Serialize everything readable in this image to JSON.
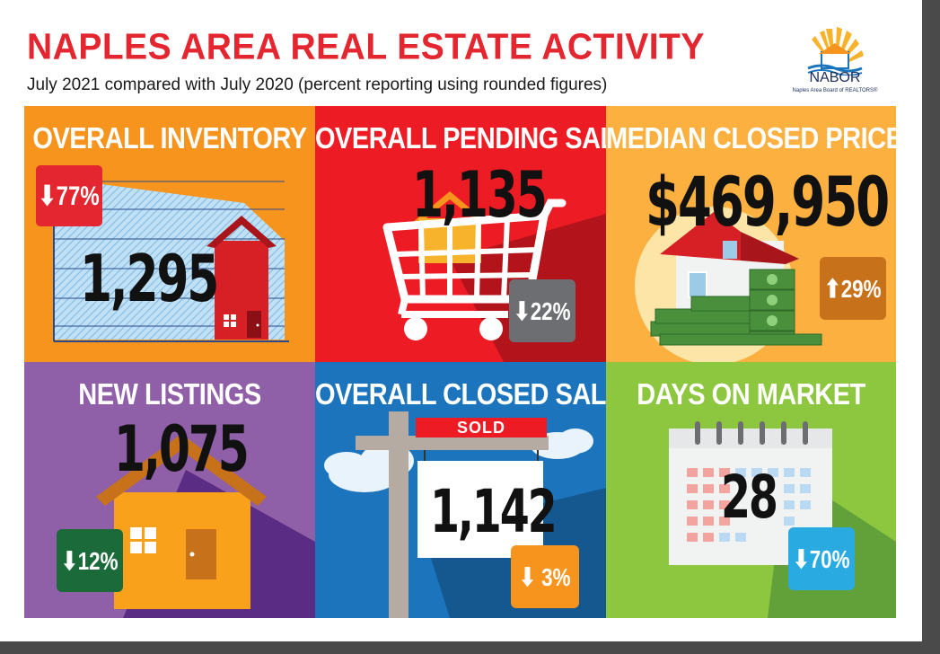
{
  "header": {
    "title": "NAPLES AREA REAL ESTATE ACTIVITY",
    "subtitle": "July 2021 compared with July 2020 (percent reporting using rounded figures)"
  },
  "logo": {
    "name": "NABOR",
    "full_name": "Naples Area Board of REALTORS®"
  },
  "panels": {
    "inventory": {
      "title": "OVERALL INVENTORY",
      "value": "1,295",
      "change": "⬇77%",
      "color": "#f7941d"
    },
    "pending": {
      "title": "OVERALL PENDING SALES",
      "value": "1,135",
      "change": "⬇22%",
      "color": "#ed1c24"
    },
    "median": {
      "title": "MEDIAN CLOSED PRICE",
      "value": "$469,950",
      "change": "⬆29%",
      "color": "#fbb040"
    },
    "listings": {
      "title": "NEW LISTINGS",
      "value": "1,075",
      "change": "⬇12%",
      "color": "#8f5fa8"
    },
    "closed": {
      "title": "OVERALL CLOSED SALES",
      "value": "1,142",
      "change": "⬇ 3%",
      "sign": "SOLD",
      "color": "#1c75bc"
    },
    "days": {
      "title": "DAYS ON MARKET",
      "value": "28",
      "change": "⬇70%",
      "color": "#8dc63f"
    }
  }
}
